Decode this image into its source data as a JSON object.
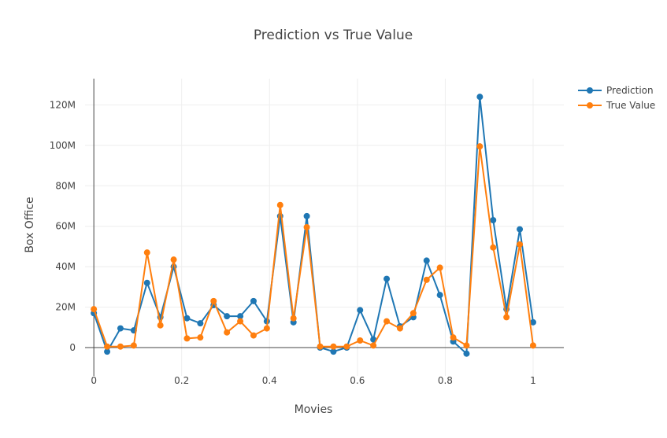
{
  "chart_data": {
    "type": "line",
    "title": "Prediction vs True Value",
    "xlabel": "Movies",
    "ylabel": "Box Office",
    "xlim": [
      -0.02,
      1.07
    ],
    "ylim": [
      -14000000,
      133000000
    ],
    "xticks": [
      0,
      0.2,
      0.4,
      0.6,
      0.8,
      1
    ],
    "xtick_labels": [
      "0",
      "0.2",
      "0.4",
      "0.6",
      "0.8",
      "1"
    ],
    "yticks": [
      0,
      20000000,
      40000000,
      60000000,
      80000000,
      100000000,
      120000000
    ],
    "ytick_labels": [
      "0",
      "20M",
      "40M",
      "60M",
      "80M",
      "100M",
      "120M"
    ],
    "grid": true,
    "legend_position": "top-right",
    "x": [
      0,
      0.0303,
      0.0606,
      0.0909,
      0.1212,
      0.1515,
      0.1818,
      0.2121,
      0.2424,
      0.2727,
      0.303,
      0.3333,
      0.3636,
      0.3939,
      0.4242,
      0.4545,
      0.4848,
      0.5152,
      0.5455,
      0.5758,
      0.6061,
      0.6364,
      0.6667,
      0.697,
      0.7273,
      0.7576,
      0.7879,
      0.8182,
      0.8485,
      0.8788,
      0.9091,
      0.9394,
      0.9697,
      1.0
    ],
    "series": [
      {
        "name": "Prediction",
        "color": "#1f77b4",
        "values": [
          17000000,
          -2000000,
          9500000,
          8500000,
          32000000,
          15000000,
          40000000,
          14500000,
          12000000,
          21000000,
          15500000,
          15500000,
          23000000,
          13000000,
          65000000,
          12500000,
          65000000,
          0,
          -2000000,
          0,
          18500000,
          4000000,
          34000000,
          10500000,
          15000000,
          43000000,
          26000000,
          3000000,
          -3000000,
          124000000,
          63000000,
          19000000,
          58500000,
          12500000
        ]
      },
      {
        "name": "True Value",
        "color": "#ff7f0e",
        "values": [
          19000000,
          500000,
          500000,
          1000000,
          47000000,
          11000000,
          43500000,
          4500000,
          5000000,
          23000000,
          7500000,
          13000000,
          6000000,
          9500000,
          70500000,
          14500000,
          59500000,
          500000,
          500000,
          500000,
          3500000,
          1000000,
          13000000,
          9500000,
          17000000,
          33500000,
          39500000,
          5000000,
          1000000,
          99500000,
          49500000,
          15000000,
          51000000,
          1000000
        ]
      }
    ]
  }
}
